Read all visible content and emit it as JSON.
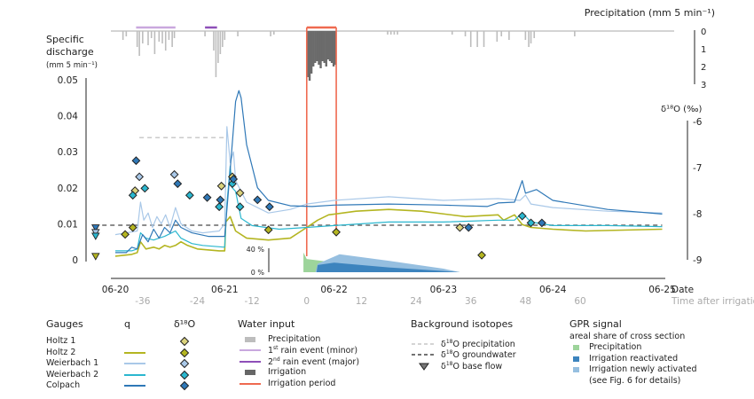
{
  "chart_data": {
    "type": "line",
    "x_unit": "days since 06-20 00:00",
    "date_ticks": [
      "06-20",
      "06-21",
      "06-22",
      "06-23",
      "06-24",
      "06-25"
    ],
    "date_axis_label": "Date",
    "hour_ticks": [
      "-36",
      "-24",
      "-12",
      "0",
      "12",
      "24",
      "36",
      "48",
      "60"
    ],
    "hour_axis_label": "Time after irrigation (h)",
    "irrigation_start_day": 1.75,
    "left_axis": {
      "label_lines": [
        "Specific",
        "discharge",
        "(mm  5 min⁻¹)"
      ],
      "ticks": [
        "0",
        "0.01",
        "0.02",
        "0.03",
        "0.04",
        "0.05"
      ],
      "ylim": [
        0,
        0.05
      ]
    },
    "right_axis": {
      "label": "δ¹⁸O (‰)",
      "ticks": [
        "-6",
        "-7",
        "-8",
        "-9"
      ],
      "ylim": [
        -9,
        -6
      ]
    },
    "precip_axis": {
      "label": "Precipitation (mm  5 min⁻¹)",
      "ticks": [
        "0",
        "1",
        "2",
        "3"
      ],
      "ylim": [
        0,
        3
      ]
    },
    "precipitation_bars": [
      {
        "x": 0.07,
        "v": 0.5
      },
      {
        "x": 0.1,
        "v": 0.3
      },
      {
        "x": 0.2,
        "v": 0.9
      },
      {
        "x": 0.22,
        "v": 1.4
      },
      {
        "x": 0.25,
        "v": 0.7
      },
      {
        "x": 0.3,
        "v": 0.8
      },
      {
        "x": 0.33,
        "v": 0.4
      },
      {
        "x": 0.36,
        "v": 1.3
      },
      {
        "x": 0.4,
        "v": 0.6
      },
      {
        "x": 0.43,
        "v": 0.7
      },
      {
        "x": 0.46,
        "v": 1.1
      },
      {
        "x": 0.49,
        "v": 0.5
      },
      {
        "x": 0.52,
        "v": 0.9
      },
      {
        "x": 0.54,
        "v": 0.4
      },
      {
        "x": 0.82,
        "v": 0.3
      },
      {
        "x": 0.9,
        "v": 1.1
      },
      {
        "x": 0.92,
        "v": 2.6
      },
      {
        "x": 0.94,
        "v": 1.8
      },
      {
        "x": 0.96,
        "v": 1.3
      },
      {
        "x": 0.98,
        "v": 0.9
      },
      {
        "x": 1.0,
        "v": 0.5
      },
      {
        "x": 1.12,
        "v": 0.3
      },
      {
        "x": 1.42,
        "v": 0.3
      },
      {
        "x": 1.45,
        "v": 0.2
      },
      {
        "x": 2.49,
        "v": 0.2
      },
      {
        "x": 2.52,
        "v": 0.2
      },
      {
        "x": 2.55,
        "v": 0.2
      },
      {
        "x": 2.58,
        "v": 0.2
      },
      {
        "x": 3.08,
        "v": 0.2
      },
      {
        "x": 3.2,
        "v": 0.3
      },
      {
        "x": 3.25,
        "v": 0.9
      },
      {
        "x": 3.31,
        "v": 0.9
      },
      {
        "x": 3.37,
        "v": 0.9
      },
      {
        "x": 3.49,
        "v": 0.6
      },
      {
        "x": 3.53,
        "v": 0.3
      },
      {
        "x": 3.6,
        "v": 0.5
      },
      {
        "x": 3.75,
        "v": 0.5
      },
      {
        "x": 3.78,
        "v": 0.9
      },
      {
        "x": 3.8,
        "v": 0.7
      },
      {
        "x": 3.83,
        "v": 0.4
      },
      {
        "x": 4.2,
        "v": 0.3
      }
    ],
    "irrigation_bars": {
      "start": 1.75,
      "end": 2.02,
      "profile": [
        2.6,
        2.8,
        2.4,
        2.0,
        1.8,
        1.7,
        1.9,
        2.1,
        1.7,
        1.8,
        2.0,
        1.6,
        1.7,
        1.8,
        2.0,
        1.9
      ]
    },
    "rain_event_1": {
      "label": "1st rain event (minor)",
      "start": 0.19,
      "end": 0.55,
      "color": "#c9a8de"
    },
    "rain_event_2": {
      "label": "2nd rain event (major)",
      "start": 0.82,
      "end": 0.93,
      "color": "#8e4fb8"
    },
    "irrigation_period": {
      "start": 1.75,
      "end": 2.02,
      "color": "#ef6a50"
    },
    "series": [
      {
        "name": "Holtz 2",
        "color": "#b4b521",
        "points": [
          [
            0,
            0.001
          ],
          [
            0.15,
            0.0015
          ],
          [
            0.2,
            0.002
          ],
          [
            0.23,
            0.005
          ],
          [
            0.28,
            0.003
          ],
          [
            0.35,
            0.0035
          ],
          [
            0.4,
            0.003
          ],
          [
            0.45,
            0.004
          ],
          [
            0.5,
            0.0035
          ],
          [
            0.55,
            0.004
          ],
          [
            0.6,
            0.005
          ],
          [
            0.66,
            0.004
          ],
          [
            0.75,
            0.003
          ],
          [
            0.95,
            0.0025
          ],
          [
            1.0,
            0.0025
          ],
          [
            1.01,
            0.0105
          ],
          [
            1.05,
            0.012
          ],
          [
            1.1,
            0.008
          ],
          [
            1.2,
            0.006
          ],
          [
            1.4,
            0.0055
          ],
          [
            1.6,
            0.006
          ],
          [
            1.75,
            0.009
          ],
          [
            1.85,
            0.011
          ],
          [
            1.95,
            0.0125
          ],
          [
            2.2,
            0.0135
          ],
          [
            2.5,
            0.014
          ],
          [
            2.8,
            0.0135
          ],
          [
            3.2,
            0.012
          ],
          [
            3.5,
            0.0125
          ],
          [
            3.55,
            0.011
          ],
          [
            3.65,
            0.0125
          ],
          [
            3.72,
            0.0098
          ],
          [
            3.8,
            0.009
          ],
          [
            4.0,
            0.0085
          ],
          [
            4.3,
            0.008
          ],
          [
            5.0,
            0.0085
          ]
        ]
      },
      {
        "name": "Weierbach 1",
        "color": "#a9c8e8",
        "points": [
          [
            0,
            0.007
          ],
          [
            0.1,
            0.0075
          ],
          [
            0.2,
            0.008
          ],
          [
            0.23,
            0.016
          ],
          [
            0.26,
            0.011
          ],
          [
            0.3,
            0.013
          ],
          [
            0.34,
            0.009
          ],
          [
            0.38,
            0.012
          ],
          [
            0.42,
            0.01
          ],
          [
            0.46,
            0.0125
          ],
          [
            0.5,
            0.009
          ],
          [
            0.55,
            0.0145
          ],
          [
            0.6,
            0.01
          ],
          [
            0.7,
            0.008
          ],
          [
            0.8,
            0.0075
          ],
          [
            0.95,
            0.008
          ],
          [
            1.0,
            0.01
          ],
          [
            1.02,
            0.037
          ],
          [
            1.05,
            0.027
          ],
          [
            1.08,
            0.03
          ],
          [
            1.1,
            0.022
          ],
          [
            1.2,
            0.016
          ],
          [
            1.4,
            0.013
          ],
          [
            1.6,
            0.014
          ],
          [
            1.75,
            0.0155
          ],
          [
            2.0,
            0.0165
          ],
          [
            2.5,
            0.0175
          ],
          [
            3.0,
            0.0165
          ],
          [
            3.5,
            0.017
          ],
          [
            3.7,
            0.0165
          ],
          [
            3.75,
            0.018
          ],
          [
            3.8,
            0.0155
          ],
          [
            4.0,
            0.0145
          ],
          [
            4.5,
            0.0135
          ],
          [
            5.0,
            0.013
          ]
        ]
      },
      {
        "name": "Weierbach 2",
        "color": "#2bb7cf",
        "points": [
          [
            0,
            0.0025
          ],
          [
            0.15,
            0.0025
          ],
          [
            0.2,
            0.003
          ],
          [
            0.23,
            0.0075
          ],
          [
            0.28,
            0.006
          ],
          [
            0.35,
            0.0055
          ],
          [
            0.4,
            0.006
          ],
          [
            0.45,
            0.0065
          ],
          [
            0.55,
            0.008
          ],
          [
            0.6,
            0.006
          ],
          [
            0.7,
            0.0045
          ],
          [
            0.8,
            0.004
          ],
          [
            1.0,
            0.0035
          ],
          [
            1.02,
            0.0155
          ],
          [
            1.05,
            0.026
          ],
          [
            1.07,
            0.02
          ],
          [
            1.1,
            0.019
          ],
          [
            1.15,
            0.0115
          ],
          [
            1.25,
            0.0095
          ],
          [
            1.5,
            0.0085
          ],
          [
            1.75,
            0.009
          ],
          [
            2.0,
            0.0095
          ],
          [
            2.5,
            0.0105
          ],
          [
            3.0,
            0.0105
          ],
          [
            3.5,
            0.011
          ],
          [
            3.65,
            0.011
          ],
          [
            3.72,
            0.013
          ],
          [
            3.8,
            0.0105
          ],
          [
            4.0,
            0.0095
          ],
          [
            4.5,
            0.0095
          ],
          [
            5.0,
            0.0092
          ]
        ]
      },
      {
        "name": "Colpach",
        "color": "#2f78b7",
        "points": [
          [
            0,
            0.002
          ],
          [
            0.1,
            0.002
          ],
          [
            0.15,
            0.0035
          ],
          [
            0.2,
            0.003
          ],
          [
            0.25,
            0.007
          ],
          [
            0.3,
            0.005
          ],
          [
            0.35,
            0.0085
          ],
          [
            0.4,
            0.006
          ],
          [
            0.45,
            0.009
          ],
          [
            0.5,
            0.0075
          ],
          [
            0.55,
            0.011
          ],
          [
            0.6,
            0.009
          ],
          [
            0.7,
            0.0075
          ],
          [
            0.85,
            0.0065
          ],
          [
            1.0,
            0.0065
          ],
          [
            1.05,
            0.025
          ],
          [
            1.1,
            0.044
          ],
          [
            1.13,
            0.047
          ],
          [
            1.15,
            0.045
          ],
          [
            1.2,
            0.032
          ],
          [
            1.3,
            0.02
          ],
          [
            1.4,
            0.0165
          ],
          [
            1.6,
            0.015
          ],
          [
            1.8,
            0.0148
          ],
          [
            2.0,
            0.0152
          ],
          [
            2.5,
            0.0155
          ],
          [
            3.0,
            0.0152
          ],
          [
            3.4,
            0.0148
          ],
          [
            3.5,
            0.0158
          ],
          [
            3.65,
            0.016
          ],
          [
            3.72,
            0.022
          ],
          [
            3.75,
            0.0185
          ],
          [
            3.85,
            0.0195
          ],
          [
            4.0,
            0.0165
          ],
          [
            4.5,
            0.014
          ],
          [
            5.0,
            0.0127
          ]
        ]
      }
    ],
    "isotope_samples": [
      {
        "gauge": "Holtz 1",
        "color": "#dbd37d",
        "points": [
          [
            0.18,
            -7.5
          ],
          [
            0.97,
            -7.4
          ],
          [
            1.07,
            -7.2
          ],
          [
            1.14,
            -7.55
          ],
          [
            3.15,
            -8.3
          ]
        ]
      },
      {
        "gauge": "Holtz 2",
        "color": "#b4b521",
        "points": [
          [
            0.09,
            -8.45
          ],
          [
            0.16,
            -8.3
          ],
          [
            1.4,
            -8.35
          ],
          [
            2.02,
            -8.4
          ],
          [
            3.35,
            -8.9
          ]
        ]
      },
      {
        "gauge": "Weierbach 1",
        "color": "#a9c8e8",
        "points": [
          [
            0.22,
            -7.2
          ],
          [
            0.54,
            -7.15
          ]
        ]
      },
      {
        "gauge": "Weierbach 2",
        "color": "#2bb7cf",
        "points": [
          [
            0.16,
            -7.6
          ],
          [
            0.27,
            -7.45
          ],
          [
            0.68,
            -7.6
          ],
          [
            0.95,
            -7.85
          ],
          [
            1.07,
            -7.35
          ],
          [
            1.14,
            -7.85
          ],
          [
            3.72,
            -8.05
          ],
          [
            3.8,
            -8.2
          ]
        ]
      },
      {
        "gauge": "Colpach",
        "color": "#2f78b7",
        "points": [
          [
            0.19,
            -6.85
          ],
          [
            0.57,
            -7.35
          ],
          [
            0.84,
            -7.65
          ],
          [
            0.96,
            -7.7
          ],
          [
            1.08,
            -7.25
          ],
          [
            1.3,
            -7.7
          ],
          [
            1.41,
            -7.85
          ],
          [
            3.23,
            -8.3
          ],
          [
            3.9,
            -8.2
          ]
        ]
      }
    ],
    "background_isotopes": {
      "precipitation": -6.35,
      "precipitation_range": [
        0.22,
        1.02
      ],
      "groundwater": -8.25
    },
    "base_flow": [
      {
        "gauge": "Colpach",
        "color": "#2f78b7",
        "value": -8.3
      },
      {
        "gauge": "Weierbach 1",
        "color": "#a9c8e8",
        "value": -8.4
      },
      {
        "gauge": "Weierbach 2",
        "color": "#2bb7cf",
        "value": -8.48
      },
      {
        "gauge": "Holtz 2",
        "color": "#b4b521",
        "value": -8.92
      }
    ],
    "gpr": {
      "ticks": [
        "40 %",
        "0 %"
      ],
      "ylim": [
        0,
        40
      ],
      "precipitation": [
        [
          1.72,
          33
        ],
        [
          1.75,
          22
        ],
        [
          2.02,
          16
        ],
        [
          2.5,
          10
        ],
        [
          3.0,
          4
        ],
        [
          3.15,
          0
        ]
      ],
      "reactivated": [
        [
          1.84,
          0
        ],
        [
          1.85,
          12
        ],
        [
          2.0,
          16
        ],
        [
          2.5,
          8
        ],
        [
          3.0,
          2
        ],
        [
          3.15,
          0
        ]
      ],
      "newly_activated": [
        [
          1.83,
          0
        ],
        [
          1.85,
          14
        ],
        [
          2.05,
          30
        ],
        [
          2.5,
          19
        ],
        [
          3.0,
          6
        ],
        [
          3.15,
          0
        ]
      ],
      "colors": {
        "precipitation": "#9dd49b",
        "reactivated": "#3d84be",
        "newly_activated": "#96bfe0"
      }
    }
  },
  "legend": {
    "gauges": {
      "title": "Gauges",
      "q_header": "q",
      "iso_header": "δ¹⁸O",
      "items": [
        {
          "name": "Holtz 1",
          "line": null,
          "marker": "#dbd37d"
        },
        {
          "name": "Holtz 2",
          "line": "#b4b521",
          "marker": "#b4b521"
        },
        {
          "name": "Weierbach 1",
          "line": "#a9c8e8",
          "marker": "#a9c8e8"
        },
        {
          "name": "Weierbach 2",
          "line": "#2bb7cf",
          "marker": "#2bb7cf"
        },
        {
          "name": "Colpach",
          "line": "#2f78b7",
          "marker": "#2f78b7"
        }
      ]
    },
    "water_input": {
      "title": "Water input",
      "items": [
        {
          "label": "Precipitation"
        },
        {
          "label_pre": "1",
          "label_sup": "st",
          "label_post": " rain event (minor)"
        },
        {
          "label_pre": "2",
          "label_sup": "nd",
          "label_post": " rain event (major)"
        },
        {
          "label": "Irrigation"
        },
        {
          "label": "Irrigation period"
        }
      ]
    },
    "background": {
      "title": "Background isotopes",
      "items": [
        {
          "label": " precipitation"
        },
        {
          "label": " groundwater"
        },
        {
          "label": " base flow"
        }
      ],
      "prefix": "δ",
      "prefix_sup": "18",
      "prefix_post": "O"
    },
    "gpr": {
      "title": "GPR signal",
      "subtitle": "areal share of cross section",
      "items": [
        {
          "label": "Precipitation",
          "color": "#9dd49b"
        },
        {
          "label": "Irrigation reactivated",
          "color": "#3d84be"
        },
        {
          "label": "Irrigation newly activated",
          "color": "#96bfe0"
        },
        {
          "label": "(see Fig. 6 for details)",
          "color": null
        }
      ]
    }
  }
}
